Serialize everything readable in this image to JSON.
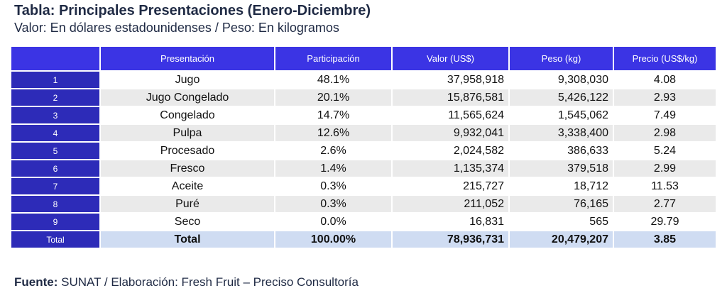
{
  "title": "Tabla:  Principales Presentaciones (Enero-Diciembre)",
  "subtitle": "Valor: En dólares estadounidenses / Peso: En kilogramos",
  "columns": [
    "",
    "Presentación",
    "Participación",
    "Valor (US$)",
    "Peso (kg)",
    "Precio (US$/kg)"
  ],
  "rows": [
    {
      "idx": "1",
      "presentacion": "Jugo",
      "participacion": "48.1%",
      "valor": "37,958,918",
      "peso": "9,308,030",
      "precio": "4.08"
    },
    {
      "idx": "2",
      "presentacion": "Jugo Congelado",
      "participacion": "20.1%",
      "valor": "15,876,581",
      "peso": "5,426,122",
      "precio": "2.93"
    },
    {
      "idx": "3",
      "presentacion": "Congelado",
      "participacion": "14.7%",
      "valor": "11,565,624",
      "peso": "1,545,062",
      "precio": "7.49"
    },
    {
      "idx": "4",
      "presentacion": "Pulpa",
      "participacion": "12.6%",
      "valor": "9,932,041",
      "peso": "3,338,400",
      "precio": "2.98"
    },
    {
      "idx": "5",
      "presentacion": "Procesado",
      "participacion": "2.6%",
      "valor": "2,024,582",
      "peso": "386,633",
      "precio": "5.24"
    },
    {
      "idx": "6",
      "presentacion": "Fresco",
      "participacion": "1.4%",
      "valor": "1,135,374",
      "peso": "379,518",
      "precio": "2.99"
    },
    {
      "idx": "7",
      "presentacion": "Aceite",
      "participacion": "0.3%",
      "valor": "215,727",
      "peso": "18,712",
      "precio": "11.53"
    },
    {
      "idx": "8",
      "presentacion": "Puré",
      "participacion": "0.3%",
      "valor": "211,052",
      "peso": "76,165",
      "precio": "2.77"
    },
    {
      "idx": "9",
      "presentacion": "Seco",
      "participacion": "0.0%",
      "valor": "16,831",
      "peso": "565",
      "precio": "29.79"
    }
  ],
  "total": {
    "idx": "Total",
    "presentacion": "Total",
    "participacion": "100.00%",
    "valor": "78,936,731",
    "peso": "20,479,207",
    "precio": "3.85"
  },
  "source": {
    "label": "Fuente:",
    "text": " SUNAT / Elaboración: Fresh Fruit – Preciso Consultoría"
  },
  "colors": {
    "header_bg": "#3b34e4",
    "index_bg": "#2d2bb8",
    "total_bg": "#cfdcf2",
    "stripe_bg": "#eaeaea"
  }
}
